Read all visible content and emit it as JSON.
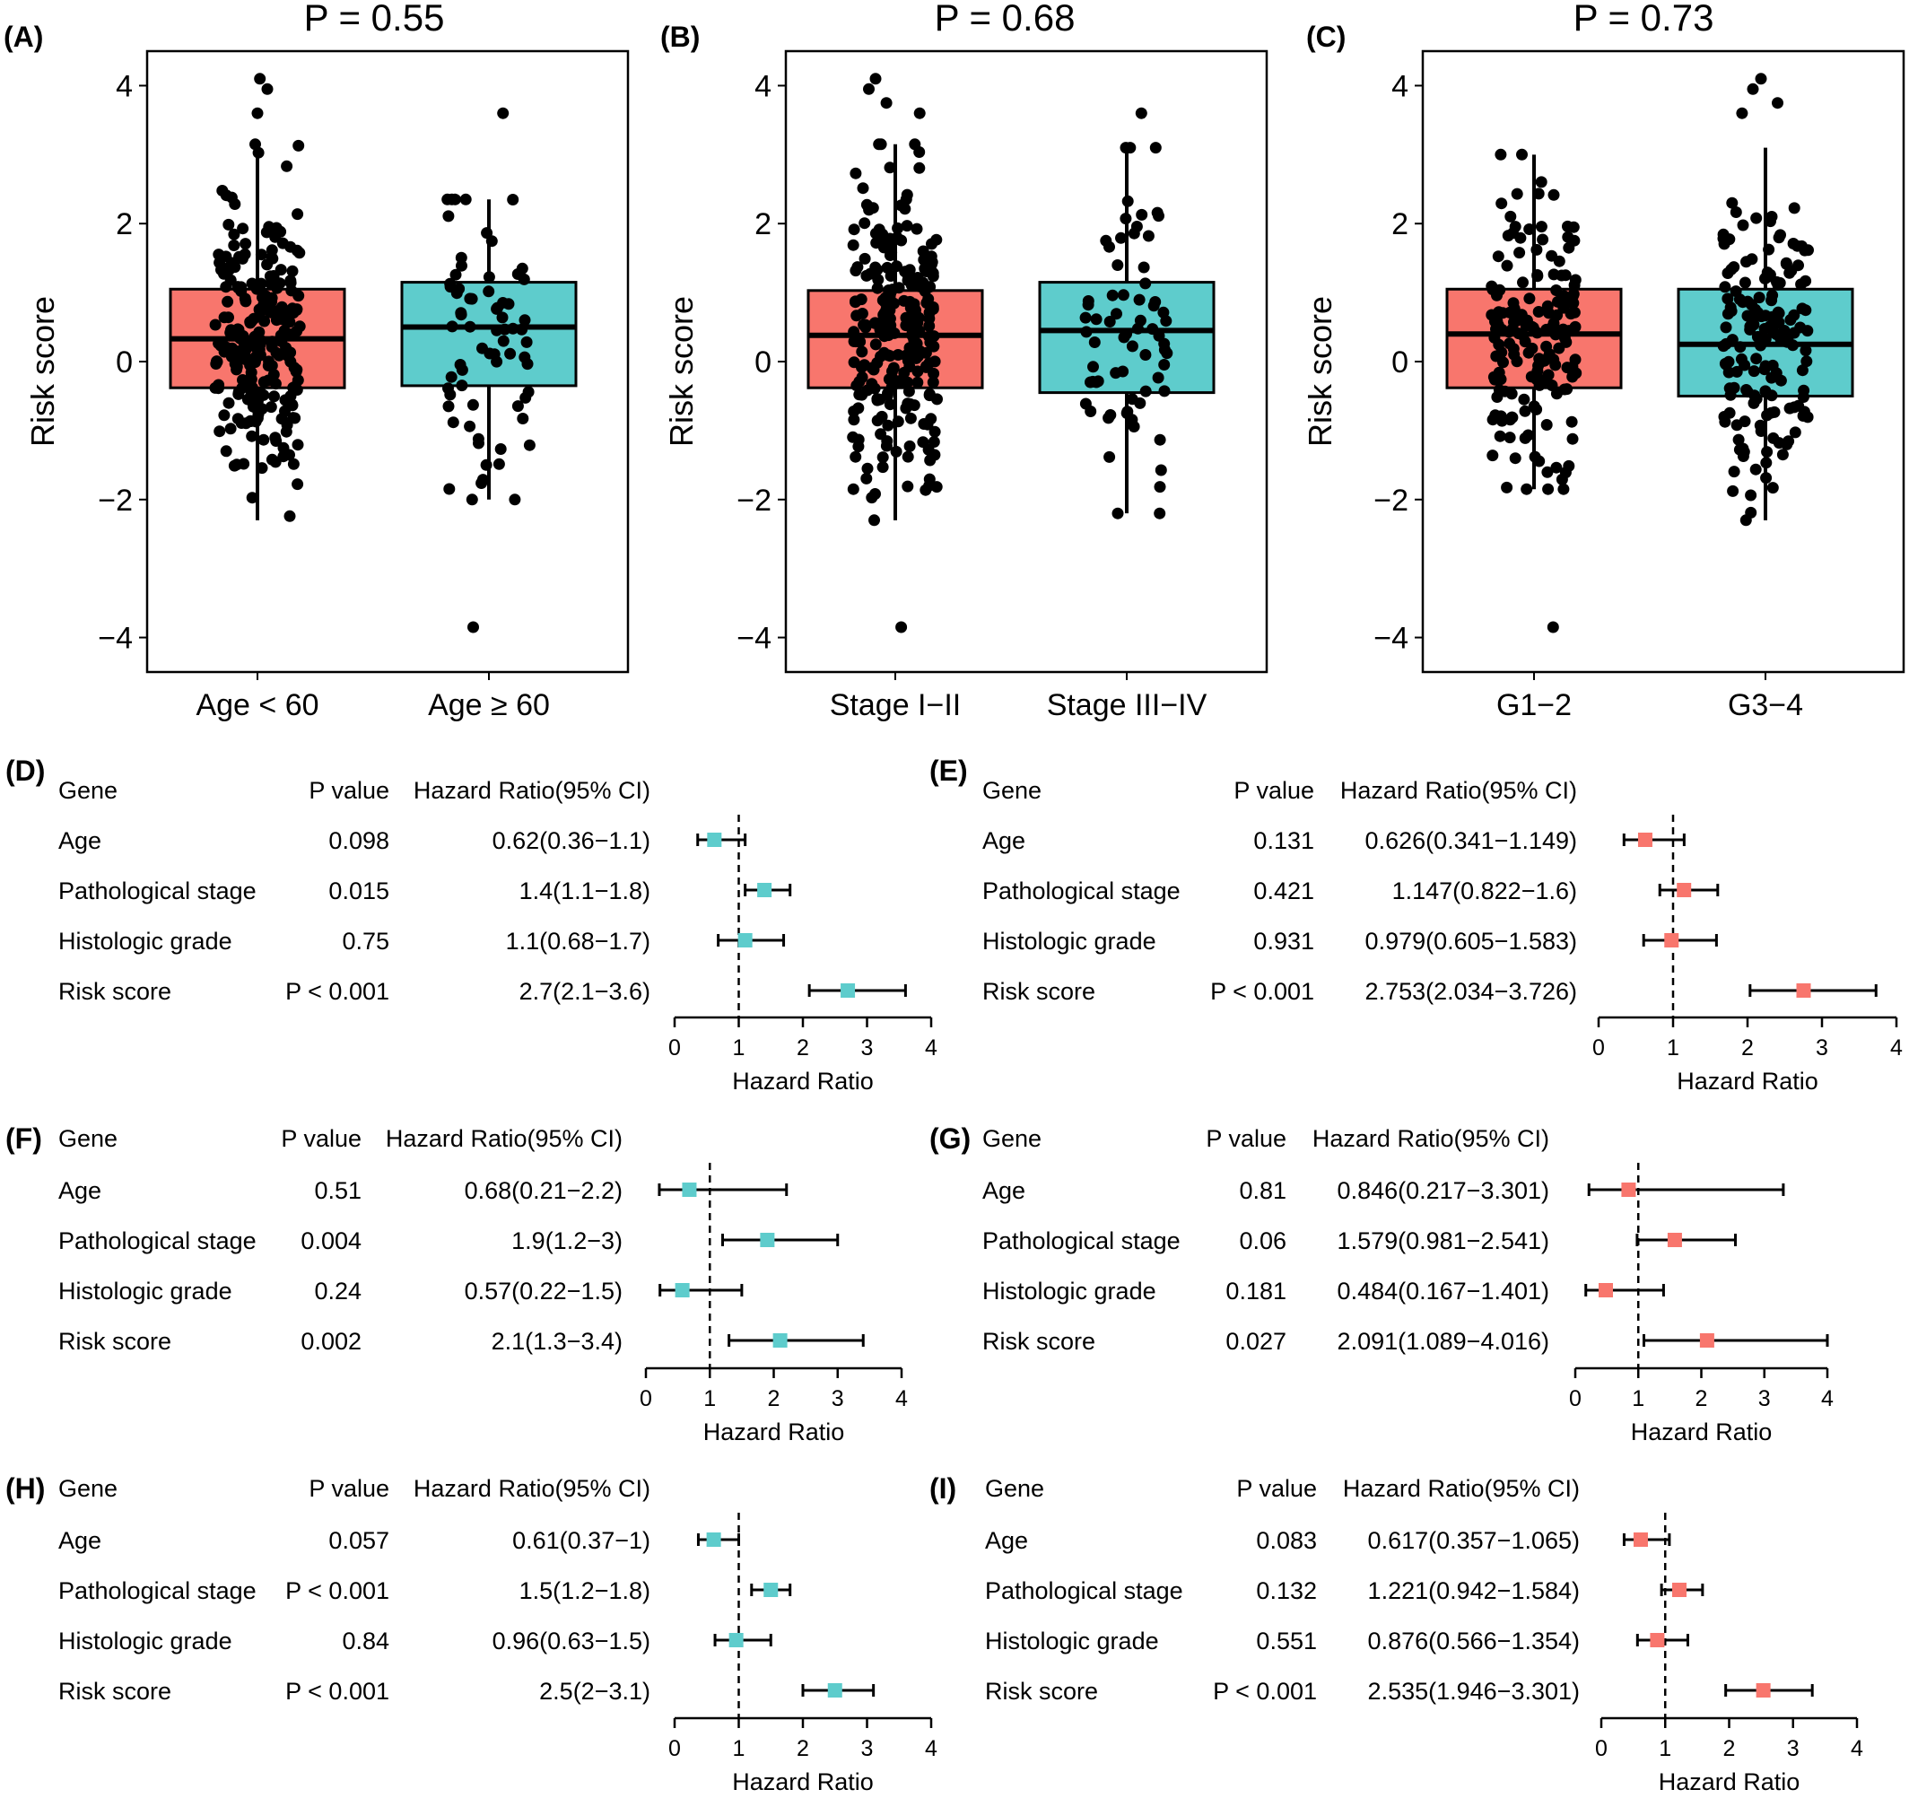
{
  "colors": {
    "red": "#F8766D",
    "teal": "#5ECCCC",
    "dark": "#000000"
  },
  "chart_data": [
    {
      "panel": "(A)",
      "type": "box",
      "title": "P = 0.55",
      "ylabel": "Risk score",
      "ylim": [
        -4.5,
        4.5
      ],
      "yticks": [
        "4",
        "2",
        "0",
        "−2",
        "−4"
      ],
      "groups": [
        {
          "label": "Age < 60",
          "color": "#F8766D",
          "q1": -0.38,
          "median": 0.33,
          "q3": 1.05,
          "whisker_low": -2.3,
          "whisker_high": 3.15,
          "outliers_low": [],
          "outliers_high": [
            3.6,
            3.95,
            4.1
          ],
          "n_points": 240
        },
        {
          "label": "Age ≥ 60",
          "color": "#5ECCCC",
          "q1": -0.35,
          "median": 0.5,
          "q3": 1.15,
          "whisker_low": -2.0,
          "whisker_high": 2.35,
          "outliers_low": [
            -3.85
          ],
          "outliers_high": [
            3.6
          ],
          "n_points": 70
        }
      ]
    },
    {
      "panel": "(B)",
      "type": "box",
      "title": "P = 0.68",
      "ylabel": "Risk score",
      "ylim": [
        -4.5,
        4.5
      ],
      "yticks": [
        "4",
        "2",
        "0",
        "−2",
        "−4"
      ],
      "groups": [
        {
          "label": "Stage I−II",
          "color": "#F8766D",
          "q1": -0.38,
          "median": 0.38,
          "q3": 1.03,
          "whisker_low": -2.3,
          "whisker_high": 3.15,
          "outliers_low": [
            -3.85
          ],
          "outliers_high": [
            3.6,
            3.75,
            3.95,
            4.1
          ],
          "n_points": 240
        },
        {
          "label": "Stage III−IV",
          "color": "#5ECCCC",
          "q1": -0.45,
          "median": 0.45,
          "q3": 1.15,
          "whisker_low": -2.2,
          "whisker_high": 3.1,
          "outliers_low": [],
          "outliers_high": [
            3.6
          ],
          "n_points": 70
        }
      ]
    },
    {
      "panel": "(C)",
      "type": "box",
      "title": "P = 0.73",
      "ylabel": "Risk score",
      "ylim": [
        -4.5,
        4.5
      ],
      "yticks": [
        "4",
        "2",
        "0",
        "−2",
        "−4"
      ],
      "groups": [
        {
          "label": "G1−2",
          "color": "#F8766D",
          "q1": -0.38,
          "median": 0.4,
          "q3": 1.05,
          "whisker_low": -1.85,
          "whisker_high": 3.0,
          "outliers_low": [
            -3.85
          ],
          "outliers_high": [],
          "n_points": 170
        },
        {
          "label": "G3−4",
          "color": "#5ECCCC",
          "q1": -0.5,
          "median": 0.25,
          "q3": 1.05,
          "whisker_low": -2.3,
          "whisker_high": 3.1,
          "outliers_low": [],
          "outliers_high": [
            3.6,
            3.75,
            3.95,
            4.1
          ],
          "n_points": 160
        }
      ]
    },
    {
      "panel": "(D)",
      "type": "forest",
      "color": "#5ECCCC",
      "headers": [
        "Gene",
        "P value",
        "Hazard Ratio(95% CI)"
      ],
      "xlabel": "Hazard Ratio",
      "xlim": [
        0,
        4
      ],
      "xticks": [
        0,
        1,
        2,
        3,
        4
      ],
      "ref_line": 1,
      "rows": [
        {
          "gene": "Age",
          "p": "0.098",
          "hr_text": "0.62(0.36−1.1)",
          "hr": 0.62,
          "low": 0.36,
          "high": 1.1
        },
        {
          "gene": "Pathological stage",
          "p": "0.015",
          "hr_text": "1.4(1.1−1.8)",
          "hr": 1.4,
          "low": 1.1,
          "high": 1.8
        },
        {
          "gene": "Histologic grade",
          "p": "0.75",
          "hr_text": "1.1(0.68−1.7)",
          "hr": 1.1,
          "low": 0.68,
          "high": 1.7
        },
        {
          "gene": "Risk score",
          "p": "P < 0.001",
          "hr_text": "2.7(2.1−3.6)",
          "hr": 2.7,
          "low": 2.1,
          "high": 3.6
        }
      ]
    },
    {
      "panel": "(E)",
      "type": "forest",
      "color": "#F8766D",
      "headers": [
        "Gene",
        "P value",
        "Hazard Ratio(95% CI)"
      ],
      "xlabel": "Hazard Ratio",
      "xlim": [
        0,
        4
      ],
      "xticks": [
        0,
        1,
        2,
        3,
        4
      ],
      "ref_line": 1,
      "rows": [
        {
          "gene": "Age",
          "p": "0.131",
          "hr_text": "0.626(0.341−1.149)",
          "hr": 0.626,
          "low": 0.341,
          "high": 1.149
        },
        {
          "gene": "Pathological stage",
          "p": "0.421",
          "hr_text": "1.147(0.822−1.6)",
          "hr": 1.147,
          "low": 0.822,
          "high": 1.6
        },
        {
          "gene": "Histologic grade",
          "p": "0.931",
          "hr_text": "0.979(0.605−1.583)",
          "hr": 0.979,
          "low": 0.605,
          "high": 1.583
        },
        {
          "gene": "Risk score",
          "p": "P < 0.001",
          "hr_text": "2.753(2.034−3.726)",
          "hr": 2.753,
          "low": 2.034,
          "high": 3.726
        }
      ]
    },
    {
      "panel": "(F)",
      "type": "forest",
      "color": "#5ECCCC",
      "headers": [
        "Gene",
        "P value",
        "Hazard Ratio(95% CI)"
      ],
      "xlabel": "Hazard Ratio",
      "xlim": [
        0,
        4
      ],
      "xticks": [
        0,
        1,
        2,
        3,
        4
      ],
      "ref_line": 1,
      "rows": [
        {
          "gene": "Age",
          "p": "0.51",
          "hr_text": "0.68(0.21−2.2)",
          "hr": 0.68,
          "low": 0.21,
          "high": 2.2
        },
        {
          "gene": "Pathological stage",
          "p": "0.004",
          "hr_text": "1.9(1.2−3)",
          "hr": 1.9,
          "low": 1.2,
          "high": 3.0
        },
        {
          "gene": "Histologic grade",
          "p": "0.24",
          "hr_text": "0.57(0.22−1.5)",
          "hr": 0.57,
          "low": 0.22,
          "high": 1.5
        },
        {
          "gene": "Risk score",
          "p": "0.002",
          "hr_text": "2.1(1.3−3.4)",
          "hr": 2.1,
          "low": 1.3,
          "high": 3.4
        }
      ]
    },
    {
      "panel": "(G)",
      "type": "forest",
      "color": "#F8766D",
      "headers": [
        "Gene",
        "P value",
        "Hazard Ratio(95% CI)"
      ],
      "xlabel": "Hazard Ratio",
      "xlim": [
        0,
        4
      ],
      "xticks": [
        0,
        1,
        2,
        3,
        4
      ],
      "ref_line": 1,
      "rows": [
        {
          "gene": "Age",
          "p": "0.81",
          "hr_text": "0.846(0.217−3.301)",
          "hr": 0.846,
          "low": 0.217,
          "high": 3.301
        },
        {
          "gene": "Pathological stage",
          "p": "0.06",
          "hr_text": "1.579(0.981−2.541)",
          "hr": 1.579,
          "low": 0.981,
          "high": 2.541
        },
        {
          "gene": "Histologic grade",
          "p": "0.181",
          "hr_text": "0.484(0.167−1.401)",
          "hr": 0.484,
          "low": 0.167,
          "high": 1.401
        },
        {
          "gene": "Risk score",
          "p": "0.027",
          "hr_text": "2.091(1.089−4.016)",
          "hr": 2.091,
          "low": 1.089,
          "high": 4.016
        }
      ]
    },
    {
      "panel": "(H)",
      "type": "forest",
      "color": "#5ECCCC",
      "headers": [
        "Gene",
        "P value",
        "Hazard Ratio(95% CI)"
      ],
      "xlabel": "Hazard Ratio",
      "xlim": [
        0,
        4
      ],
      "xticks": [
        0,
        1,
        2,
        3,
        4
      ],
      "ref_line": 1,
      "rows": [
        {
          "gene": "Age",
          "p": "0.057",
          "hr_text": "0.61(0.37−1)",
          "hr": 0.61,
          "low": 0.37,
          "high": 1.0
        },
        {
          "gene": "Pathological stage",
          "p": "P < 0.001",
          "hr_text": "1.5(1.2−1.8)",
          "hr": 1.5,
          "low": 1.2,
          "high": 1.8
        },
        {
          "gene": "Histologic grade",
          "p": "0.84",
          "hr_text": "0.96(0.63−1.5)",
          "hr": 0.96,
          "low": 0.63,
          "high": 1.5
        },
        {
          "gene": "Risk score",
          "p": "P < 0.001",
          "hr_text": "2.5(2−3.1)",
          "hr": 2.5,
          "low": 2.0,
          "high": 3.1
        }
      ]
    },
    {
      "panel": "(I)",
      "type": "forest",
      "color": "#F8766D",
      "headers": [
        "Gene",
        "P value",
        "Hazard Ratio(95% CI)"
      ],
      "xlabel": "Hazard Ratio",
      "xlim": [
        0,
        4
      ],
      "xticks": [
        0,
        1,
        2,
        3,
        4
      ],
      "ref_line": 1,
      "rows": [
        {
          "gene": "Age",
          "p": "0.083",
          "hr_text": "0.617(0.357−1.065)",
          "hr": 0.617,
          "low": 0.357,
          "high": 1.065
        },
        {
          "gene": "Pathological stage",
          "p": "0.132",
          "hr_text": "1.221(0.942−1.584)",
          "hr": 1.221,
          "low": 0.942,
          "high": 1.584
        },
        {
          "gene": "Histologic grade",
          "p": "0.551",
          "hr_text": "0.876(0.566−1.354)",
          "hr": 0.876,
          "low": 0.566,
          "high": 1.354
        },
        {
          "gene": "Risk score",
          "p": "P < 0.001",
          "hr_text": "2.535(1.946−3.301)",
          "hr": 2.535,
          "low": 1.946,
          "high": 3.301
        }
      ]
    }
  ]
}
